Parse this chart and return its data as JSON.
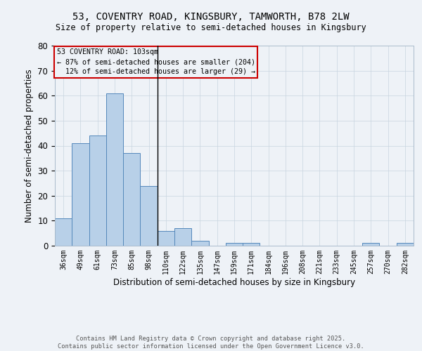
{
  "title1": "53, COVENTRY ROAD, KINGSBURY, TAMWORTH, B78 2LW",
  "title2": "Size of property relative to semi-detached houses in Kingsbury",
  "xlabel": "Distribution of semi-detached houses by size in Kingsbury",
  "ylabel": "Number of semi-detached properties",
  "categories": [
    "36sqm",
    "49sqm",
    "61sqm",
    "73sqm",
    "85sqm",
    "98sqm",
    "110sqm",
    "122sqm",
    "135sqm",
    "147sqm",
    "159sqm",
    "171sqm",
    "184sqm",
    "196sqm",
    "208sqm",
    "221sqm",
    "233sqm",
    "245sqm",
    "257sqm",
    "270sqm",
    "282sqm"
  ],
  "values": [
    11,
    41,
    44,
    61,
    37,
    24,
    6,
    7,
    2,
    0,
    1,
    1,
    0,
    0,
    0,
    0,
    0,
    0,
    1,
    0,
    1
  ],
  "bar_color": "#b8d0e8",
  "bar_edge_color": "#5588bb",
  "ylim": [
    0,
    80
  ],
  "yticks": [
    0,
    10,
    20,
    30,
    40,
    50,
    60,
    70,
    80
  ],
  "annotation_box_text": "53 COVENTRY ROAD: 103sqm\n← 87% of semi-detached houses are smaller (204)\n  12% of semi-detached houses are larger (29) →",
  "annotation_box_color": "#cc0000",
  "divider_index": 5,
  "footer": "Contains HM Land Registry data © Crown copyright and database right 2025.\nContains public sector information licensed under the Open Government Licence v3.0.",
  "bg_color": "#eef2f7"
}
